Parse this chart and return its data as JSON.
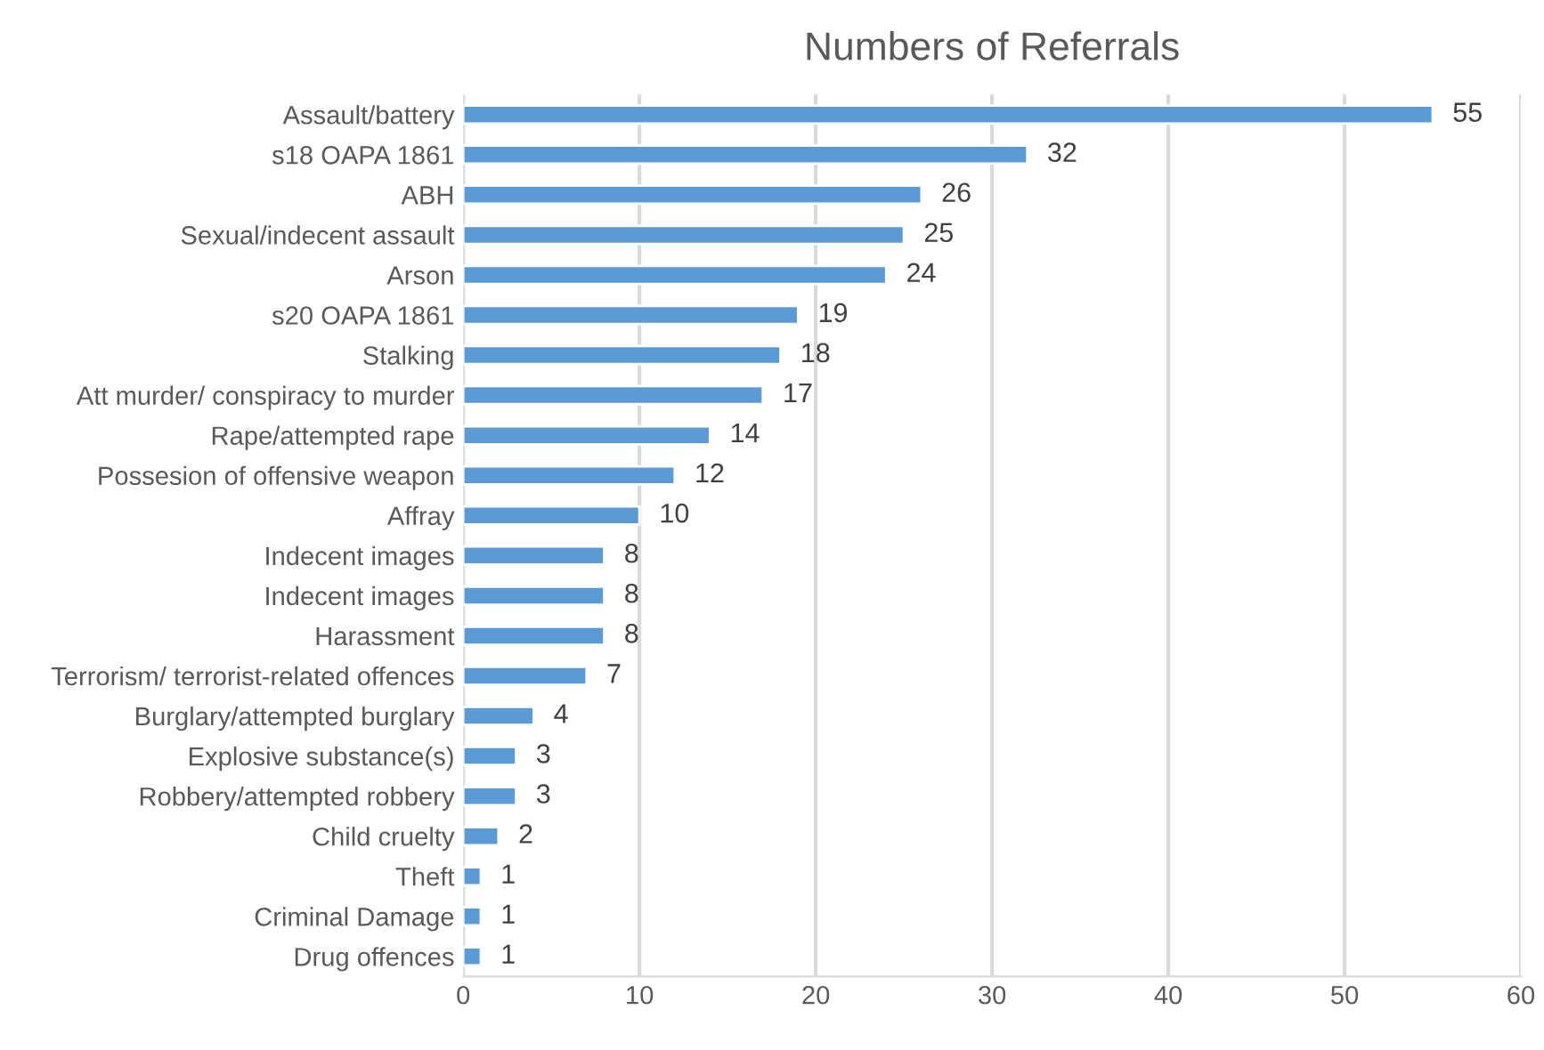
{
  "chart_data": {
    "type": "bar",
    "orientation": "horizontal",
    "title": "Numbers of Referrals",
    "categories": [
      "Assault/battery",
      "s18 OAPA 1861",
      "ABH",
      "Sexual/indecent assault",
      "Arson",
      "s20 OAPA 1861",
      "Stalking",
      "Att murder/ conspiracy to murder",
      "Rape/attempted rape",
      "Possesion of offensive weapon",
      "Affray",
      "Indecent images",
      "Indecent images",
      "Harassment",
      "Terrorism/ terrorist-related offences",
      "Burglary/attempted burglary",
      "Explosive substance(s)",
      "Robbery/attempted robbery",
      "Child cruelty",
      "Theft",
      "Criminal Damage",
      "Drug offences"
    ],
    "values": [
      55,
      32,
      26,
      25,
      24,
      19,
      18,
      17,
      14,
      12,
      10,
      8,
      8,
      8,
      7,
      4,
      3,
      3,
      2,
      1,
      1,
      1
    ],
    "color": "#5b9bd5",
    "xlim": [
      0,
      60
    ],
    "xticks": [
      0,
      10,
      20,
      30,
      40,
      50,
      60
    ],
    "grid": "x",
    "data_labels": true,
    "legend": false
  }
}
